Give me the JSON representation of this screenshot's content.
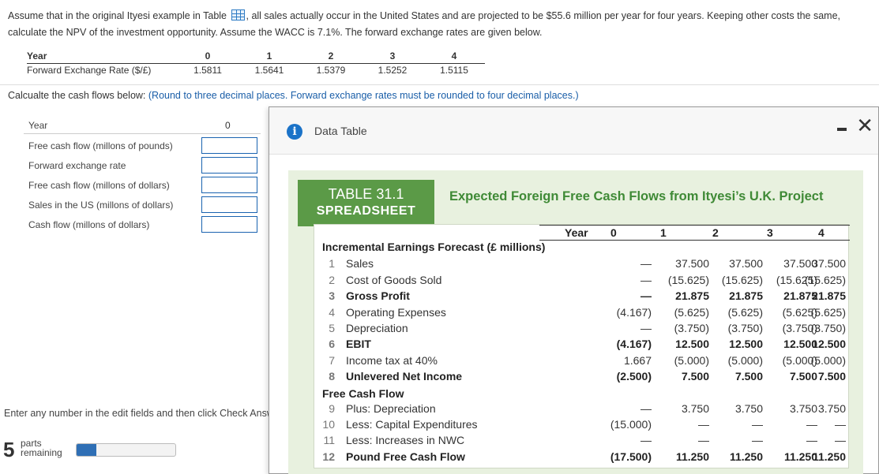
{
  "question": {
    "part1": "Assume that in the original Ityesi example in Table",
    "part2": ", all sales actually occur in the United States and are projected to be  $55.6 million per year for four years. Keeping other costs the same, calculate the NPV of the investment opportunity. Assume the WACC is 7.1%. The forward exchange rates are given below."
  },
  "fx_table": {
    "header": [
      "Year",
      "0",
      "1",
      "2",
      "3",
      "4"
    ],
    "row_label": "Forward Exchange Rate ($/£)",
    "values": [
      "1.5811",
      "1.5641",
      "1.5379",
      "1.5252",
      "1.5115"
    ]
  },
  "instruction": {
    "main": "Calcualte the cash flows below:",
    "note": "(Round to three decimal places. Forward exchange rates must be rounded to four decimal places.)"
  },
  "form": {
    "header_label": "Year",
    "header_value": "0",
    "rows": [
      "Free cash flow (millons of pounds)",
      "Forward exchange rate",
      "Free cash flow (millons of dollars)",
      "Sales in the US (millons of dollars)",
      "Cash flow (millons of dollars)"
    ]
  },
  "footer": {
    "enter_text": "Enter any number in the edit fields and then click Check Answer.",
    "parts_count": "5",
    "parts_label": "parts remaining",
    "progress_fraction": 0.2
  },
  "dialog": {
    "title": "Data Table",
    "table_tag_line1": "TABLE 31.1",
    "table_tag_line2": "SPREADSHEET",
    "table_title": "Expected Foreign Free Cash Flows from Ityesi’s U.K. Project",
    "year_header": [
      "Year",
      "0",
      "1",
      "2",
      "3",
      "4"
    ],
    "section1": "Incremental Earnings Forecast (£ millions)",
    "section2": "Free Cash Flow",
    "rows": [
      {
        "n": "1",
        "label": "Sales",
        "vals": [
          "—",
          "37.500",
          "37.500",
          "37.500",
          "37.500"
        ]
      },
      {
        "n": "2",
        "label": "Cost of Goods Sold",
        "vals": [
          "—",
          "(15.625)",
          "(15.625)",
          "(15.625)",
          "(15.625)"
        ]
      },
      {
        "n": "3",
        "label": "Gross Profit",
        "vals": [
          "—",
          "21.875",
          "21.875",
          "21.875",
          "21.875"
        ]
      },
      {
        "n": "4",
        "label": "Operating Expenses",
        "vals": [
          "(4.167)",
          "(5.625)",
          "(5.625)",
          "(5.625)",
          "(5.625)"
        ]
      },
      {
        "n": "5",
        "label": "Depreciation",
        "vals": [
          "—",
          "(3.750)",
          "(3.750)",
          "(3.750)",
          "(3.750)"
        ]
      },
      {
        "n": "6",
        "label": "EBIT",
        "vals": [
          "(4.167)",
          "12.500",
          "12.500",
          "12.500",
          "12.500"
        ]
      },
      {
        "n": "7",
        "label": "Income tax at 40%",
        "vals": [
          "1.667",
          "(5.000)",
          "(5.000)",
          "(5.000)",
          "(5.000)"
        ]
      },
      {
        "n": "8",
        "label": "Unlevered Net Income",
        "vals": [
          "(2.500)",
          "7.500",
          "7.500",
          "7.500",
          "7.500"
        ]
      },
      {
        "n": "9",
        "label": "Plus: Depreciation",
        "vals": [
          "—",
          "3.750",
          "3.750",
          "3.750",
          "3.750"
        ]
      },
      {
        "n": "10",
        "label": "Less: Capital Expenditures",
        "vals": [
          "(15.000)",
          "—",
          "—",
          "—",
          "—"
        ]
      },
      {
        "n": "11",
        "label": "Less: Increases in NWC",
        "vals": [
          "—",
          "—",
          "—",
          "—",
          "—"
        ]
      },
      {
        "n": "12",
        "label": "Pound Free Cash Flow",
        "vals": [
          "(17.500)",
          "11.250",
          "11.250",
          "11.250",
          "11.250"
        ]
      }
    ]
  }
}
